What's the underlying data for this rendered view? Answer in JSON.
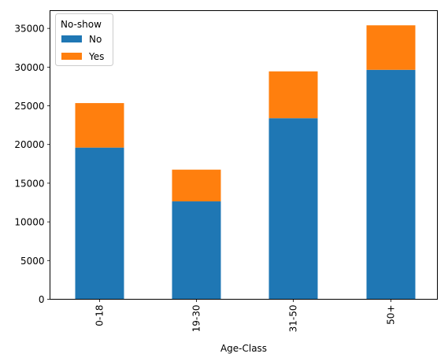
{
  "chart_data": {
    "type": "bar",
    "stacked": true,
    "categories": [
      "0-18",
      "19-30",
      "31-50",
      "50+"
    ],
    "series": [
      {
        "name": "No",
        "color": "#1f77b4",
        "values": [
          19600,
          12650,
          23400,
          29650
        ]
      },
      {
        "name": "Yes",
        "color": "#ff7f0e",
        "values": [
          5750,
          4100,
          6050,
          5750
        ]
      }
    ],
    "xlabel": "Age-Class",
    "ylabel": "",
    "ylim": [
      0,
      37300
    ],
    "yticks": [
      0,
      5000,
      10000,
      15000,
      20000,
      25000,
      30000,
      35000
    ],
    "legend": {
      "title": "No-show",
      "position": "top-left"
    },
    "grid": false
  }
}
